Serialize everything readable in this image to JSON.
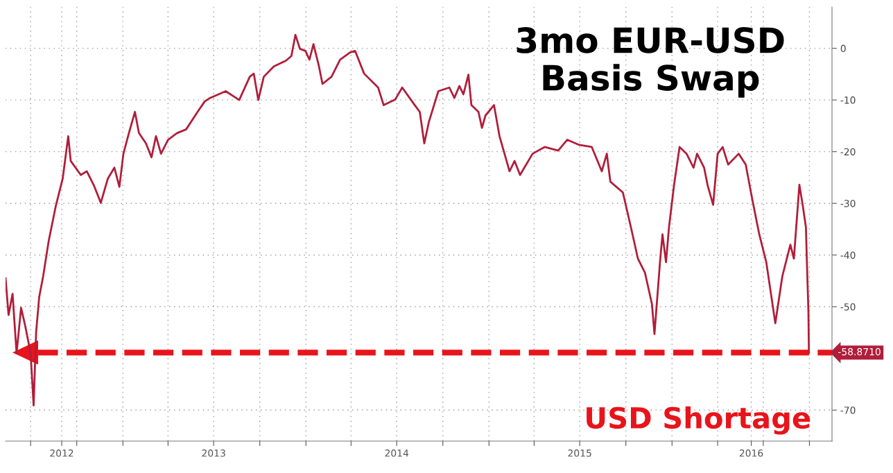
{
  "chart_data": {
    "type": "line",
    "title": "3mo EUR-USD\nBasis Swap",
    "annotations": [
      "USD Shortage"
    ],
    "x": [
      "2012-05-12",
      "2012-05-18",
      "2012-05-26",
      "2012-06-03",
      "2012-06-12",
      "2012-06-20",
      "2012-07-01",
      "2012-07-07",
      "2012-07-12",
      "2012-07-18",
      "2012-07-26",
      "2012-08-06",
      "2012-08-20",
      "2012-09-03",
      "2012-09-14",
      "2012-09-19",
      "2012-10-09",
      "2012-10-21",
      "2012-11-04",
      "2012-11-18",
      "2012-12-02",
      "2012-12-15",
      "2012-12-25",
      "2013-01-02",
      "2013-01-13",
      "2013-01-25",
      "2013-02-02",
      "2013-02-16",
      "2013-02-27",
      "2013-03-08",
      "2013-03-18",
      "2013-04-01",
      "2013-04-19",
      "2013-05-07",
      "2013-05-30",
      "2013-06-13",
      "2013-06-24",
      "2013-07-25",
      "2013-08-21",
      "2013-09-11",
      "2013-09-19",
      "2013-09-28",
      "2013-10-09",
      "2013-10-29",
      "2013-11-22",
      "2013-12-03",
      "2013-12-11",
      "2013-12-20",
      "2013-12-31",
      "2014-01-08",
      "2014-01-16",
      "2014-01-27",
      "2014-02-03",
      "2014-02-21",
      "2014-03-10",
      "2014-03-30",
      "2014-04-09",
      "2014-04-27",
      "2014-05-25",
      "2014-06-05",
      "2014-06-28",
      "2014-07-12",
      "2014-08-06",
      "2014-08-16",
      "2014-08-25",
      "2014-09-03",
      "2014-09-22",
      "2014-10-14",
      "2014-10-24",
      "2014-11-03",
      "2014-11-11",
      "2014-11-21",
      "2014-11-27",
      "2014-12-11",
      "2014-12-18",
      "2014-12-25",
      "2015-01-11",
      "2015-01-22",
      "2015-02-11",
      "2015-02-21",
      "2015-03-04",
      "2015-03-29",
      "2015-04-22",
      "2015-05-19",
      "2015-06-06",
      "2015-06-30",
      "2015-07-25",
      "2015-08-14",
      "2015-08-24",
      "2015-08-31",
      "2015-09-25",
      "2015-10-11",
      "2015-10-25",
      "2015-11-08",
      "2015-11-22",
      "2015-11-27",
      "2015-12-08",
      "2015-12-13",
      "2015-12-20",
      "2015-12-26",
      "2016-01-05",
      "2016-01-16",
      "2016-01-30",
      "2016-02-13",
      "2016-02-20",
      "2016-03-05",
      "2016-03-12",
      "2016-03-23",
      "2016-04-01",
      "2016-04-11",
      "2016-04-22",
      "2016-05-13",
      "2016-05-27",
      "2016-06-09",
      "2016-06-23",
      "2016-07-07",
      "2016-07-25",
      "2016-08-08",
      "2016-08-24",
      "2016-08-31",
      "2016-09-11",
      "2016-09-18",
      "2016-09-24",
      "2016-09-26",
      "2016-09-29",
      "2016-09-30"
    ],
    "series": [
      {
        "color": "#b01e3a",
        "values": [
          -44.5,
          -51.6,
          -47.5,
          -59,
          -50.2,
          -53.6,
          -59,
          -69.1,
          -54.9,
          -48.2,
          -44.1,
          -37.3,
          -30.6,
          -25.2,
          -17,
          -21.8,
          -24.5,
          -23.8,
          -26.5,
          -29.9,
          -25.2,
          -23.1,
          -26.8,
          -20.4,
          -16.4,
          -12.3,
          -16.4,
          -18.4,
          -21.1,
          -17,
          -20.4,
          -17.7,
          -16.4,
          -15.7,
          -12.3,
          -10.3,
          -9.6,
          -8.3,
          -10,
          -5.5,
          -4.9,
          -10,
          -5.5,
          -3.5,
          -2.4,
          -1.5,
          2.6,
          -0.1,
          -0.5,
          -2.2,
          0.8,
          -3.5,
          -6.9,
          -5.5,
          -2.2,
          -0.8,
          -0.5,
          -4.9,
          -7.6,
          -11,
          -9.9,
          -7.6,
          -11,
          -12.3,
          -18.4,
          -14.3,
          -8.3,
          -7.6,
          -9.6,
          -7.3,
          -8.9,
          -5.1,
          -11,
          -12.3,
          -15.4,
          -13,
          -11,
          -17,
          -23.8,
          -21.8,
          -24.5,
          -20.4,
          -19.1,
          -19.8,
          -17.7,
          -18.7,
          -19.1,
          -23.8,
          -20.4,
          -25.8,
          -27.9,
          -34.6,
          -40.7,
          -43.4,
          -49.5,
          -55.3,
          -41.4,
          -36,
          -41.4,
          -34.6,
          -26.5,
          -19.1,
          -20.4,
          -23.1,
          -20.4,
          -23.1,
          -26.5,
          -30.3,
          -20.4,
          -19.1,
          -22.5,
          -20.4,
          -22.5,
          -29.2,
          -36,
          -41.4,
          -53.2,
          -44.1,
          -38,
          -40.7,
          -26.4,
          -30.6,
          -34.6,
          -41.4,
          -50.9,
          -58.9
        ]
      }
    ],
    "xlim": [
      "2012-05-12",
      "2016-11-15"
    ],
    "xticks": [
      {
        "value": "2012-07-01",
        "label": null
      },
      {
        "value": "2012-09-01",
        "label": "2012"
      },
      {
        "value": "2012-10-01",
        "label": null
      },
      {
        "value": "2013-01-01",
        "label": null
      },
      {
        "value": "2013-04-01",
        "label": null
      },
      {
        "value": "2013-07-01",
        "label": "2013"
      },
      {
        "value": "2013-10-01",
        "label": null
      },
      {
        "value": "2014-01-01",
        "label": null
      },
      {
        "value": "2014-04-01",
        "label": null
      },
      {
        "value": "2014-07-01",
        "label": "2014"
      },
      {
        "value": "2014-10-01",
        "label": null
      },
      {
        "value": "2015-01-01",
        "label": null
      },
      {
        "value": "2015-04-01",
        "label": null
      },
      {
        "value": "2015-07-01",
        "label": "2015"
      },
      {
        "value": "2015-10-01",
        "label": null
      },
      {
        "value": "2016-01-01",
        "label": null
      },
      {
        "value": "2016-04-01",
        "label": null
      },
      {
        "value": "2016-06-07",
        "label": "2016"
      },
      {
        "value": "2016-07-01",
        "label": null
      },
      {
        "value": "2016-10-01",
        "label": null
      }
    ],
    "ylim": [
      -76,
      8
    ],
    "yticks": [
      0,
      -10,
      -20,
      -30,
      -40,
      -50,
      -70
    ],
    "ref_lines": [
      {
        "axis": "y",
        "value": -58.871,
        "label": "-58.8710",
        "color": "#e8141b",
        "line_style": "dashed"
      }
    ],
    "grid": true,
    "legend": false
  }
}
